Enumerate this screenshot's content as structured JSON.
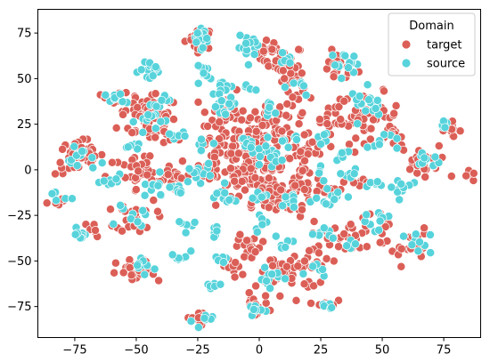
{
  "chart_data": {
    "type": "scatter",
    "title": "",
    "xlabel": "",
    "ylabel": "",
    "xlim": [
      -90,
      90
    ],
    "ylim": [
      -92,
      88
    ],
    "xticks": [
      -75,
      -50,
      -25,
      0,
      25,
      50,
      75
    ],
    "yticks": [
      -75,
      -50,
      -25,
      0,
      25,
      50,
      75
    ],
    "grid": false,
    "legend": {
      "title": "Domain",
      "placement": "top-right",
      "entries": [
        {
          "label": "target",
          "color": "#db5f57"
        },
        {
          "label": "source",
          "color": "#57d3db"
        }
      ]
    },
    "series": [
      {
        "name": "target",
        "color": "#db5f57",
        "clusters": [
          {
            "x": -24,
            "y": 72,
            "spread": 3,
            "n": 22
          },
          {
            "x": 4,
            "y": 65,
            "spread": 3,
            "n": 12
          },
          {
            "x": 10,
            "y": 60,
            "spread": 4,
            "n": 24
          },
          {
            "x": 12,
            "y": 52,
            "spread": 3,
            "n": 14
          },
          {
            "x": 32,
            "y": 56,
            "spread": 4,
            "n": 22
          },
          {
            "x": 17,
            "y": 42,
            "spread": 3,
            "n": 10
          },
          {
            "x": -48,
            "y": 38,
            "spread": 4,
            "n": 16
          },
          {
            "x": -60,
            "y": 39,
            "spread": 2,
            "n": 10
          },
          {
            "x": -45,
            "y": 28,
            "spread": 6,
            "n": 45
          },
          {
            "x": -14,
            "y": 30,
            "spread": 6,
            "n": 30
          },
          {
            "x": 3,
            "y": 31,
            "spread": 5,
            "n": 22
          },
          {
            "x": 32,
            "y": 30,
            "spread": 5,
            "n": 25
          },
          {
            "x": 45,
            "y": 30,
            "spread": 6,
            "n": 38
          },
          {
            "x": 55,
            "y": 18,
            "spread": 3,
            "n": 12
          },
          {
            "x": 78,
            "y": 22,
            "spread": 2,
            "n": 10
          },
          {
            "x": -73,
            "y": 7,
            "spread": 5,
            "n": 45
          },
          {
            "x": -36,
            "y": 18,
            "spread": 3,
            "n": 10
          },
          {
            "x": -10,
            "y": 12,
            "spread": 8,
            "n": 60
          },
          {
            "x": 5,
            "y": 6,
            "spread": 10,
            "n": 120
          },
          {
            "x": 22,
            "y": 10,
            "spread": 3,
            "n": 8
          },
          {
            "x": 65,
            "y": 5,
            "spread": 4,
            "n": 22
          },
          {
            "x": -48,
            "y": -4,
            "spread": 7,
            "n": 40
          },
          {
            "x": -34,
            "y": -3,
            "spread": 3,
            "n": 10
          },
          {
            "x": -20,
            "y": -1,
            "spread": 3,
            "n": 12
          },
          {
            "x": -8,
            "y": -3,
            "spread": 4,
            "n": 20
          },
          {
            "x": 18,
            "y": -8,
            "spread": 4,
            "n": 16
          },
          {
            "x": 40,
            "y": -7,
            "spread": 3,
            "n": 8
          },
          {
            "x": 84,
            "y": -4,
            "spread": 2,
            "n": 8
          },
          {
            "x": -82,
            "y": -17,
            "spread": 2,
            "n": 6
          },
          {
            "x": -50,
            "y": -26,
            "spread": 4,
            "n": 25
          },
          {
            "x": 2,
            "y": -15,
            "spread": 5,
            "n": 28
          },
          {
            "x": 12,
            "y": -18,
            "spread": 4,
            "n": 16
          },
          {
            "x": 26,
            "y": -12,
            "spread": 3,
            "n": 10
          },
          {
            "x": -68,
            "y": -33,
            "spread": 2,
            "n": 8
          },
          {
            "x": 29,
            "y": -36,
            "spread": 4,
            "n": 14
          },
          {
            "x": 38,
            "y": -37,
            "spread": 4,
            "n": 14
          },
          {
            "x": 47,
            "y": -28,
            "spread": 3,
            "n": 10
          },
          {
            "x": 60,
            "y": -42,
            "spread": 5,
            "n": 24
          },
          {
            "x": -4,
            "y": -42,
            "spread": 4,
            "n": 22
          },
          {
            "x": -50,
            "y": -57,
            "spread": 4,
            "n": 24
          },
          {
            "x": -10,
            "y": -54,
            "spread": 3,
            "n": 10
          },
          {
            "x": 12,
            "y": -56,
            "spread": 6,
            "n": 40
          },
          {
            "x": 26,
            "y": -48,
            "spread": 3,
            "n": 10
          },
          {
            "x": -25,
            "y": -82,
            "spread": 2,
            "n": 10
          },
          {
            "x": -2,
            "y": -74,
            "spread": 3,
            "n": 16
          },
          {
            "x": 27,
            "y": -74,
            "spread": 2,
            "n": 8
          }
        ]
      },
      {
        "name": "source",
        "color": "#57d3db",
        "clusters": [
          {
            "x": -24,
            "y": 73,
            "spread": 3,
            "n": 16
          },
          {
            "x": -3,
            "y": 67,
            "spread": 3,
            "n": 14
          },
          {
            "x": 9,
            "y": 61,
            "spread": 2,
            "n": 6
          },
          {
            "x": 35,
            "y": 58,
            "spread": 3,
            "n": 14
          },
          {
            "x": -43,
            "y": 55,
            "spread": 3,
            "n": 18
          },
          {
            "x": -22,
            "y": 53,
            "spread": 2,
            "n": 10
          },
          {
            "x": -13,
            "y": 45,
            "spread": 2,
            "n": 8
          },
          {
            "x": -4,
            "y": 45,
            "spread": 1.5,
            "n": 5
          },
          {
            "x": 18,
            "y": 45,
            "spread": 2,
            "n": 6
          },
          {
            "x": -59,
            "y": 39,
            "spread": 2,
            "n": 10
          },
          {
            "x": -40,
            "y": 39,
            "spread": 2,
            "n": 8
          },
          {
            "x": -15,
            "y": 35,
            "spread": 3,
            "n": 14
          },
          {
            "x": 5,
            "y": 33,
            "spread": 2,
            "n": 6
          },
          {
            "x": 45,
            "y": 37,
            "spread": 4,
            "n": 16
          },
          {
            "x": -44,
            "y": 27,
            "spread": 3,
            "n": 12
          },
          {
            "x": 76,
            "y": 24,
            "spread": 2,
            "n": 6
          },
          {
            "x": -34,
            "y": 18,
            "spread": 2,
            "n": 6
          },
          {
            "x": -24,
            "y": 15,
            "spread": 2,
            "n": 6
          },
          {
            "x": 12,
            "y": 17,
            "spread": 2,
            "n": 6
          },
          {
            "x": 25,
            "y": 17,
            "spread": 2,
            "n": 6
          },
          {
            "x": 50,
            "y": 16,
            "spread": 3,
            "n": 10
          },
          {
            "x": -52,
            "y": 12,
            "spread": 2,
            "n": 6
          },
          {
            "x": -72,
            "y": 6,
            "spread": 3,
            "n": 14
          },
          {
            "x": -5,
            "y": 15,
            "spread": 2,
            "n": 8
          },
          {
            "x": 0,
            "y": 10,
            "spread": 3,
            "n": 12
          },
          {
            "x": 34,
            "y": 8,
            "spread": 2,
            "n": 6
          },
          {
            "x": 68,
            "y": 6,
            "spread": 3,
            "n": 10
          },
          {
            "x": -25,
            "y": 0,
            "spread": 3,
            "n": 12
          },
          {
            "x": 7,
            "y": 2,
            "spread": 2,
            "n": 6
          },
          {
            "x": 24,
            "y": -1,
            "spread": 2,
            "n": 5
          },
          {
            "x": 38,
            "y": -2,
            "spread": 2,
            "n": 6
          },
          {
            "x": 49,
            "y": -8,
            "spread": 2,
            "n": 6
          },
          {
            "x": -60,
            "y": -7,
            "spread": 2,
            "n": 8
          },
          {
            "x": -43,
            "y": -10,
            "spread": 3,
            "n": 10
          },
          {
            "x": -34,
            "y": -12,
            "spread": 3,
            "n": 10
          },
          {
            "x": 58,
            "y": -10,
            "spread": 3,
            "n": 12
          },
          {
            "x": -82,
            "y": -15,
            "spread": 2,
            "n": 5
          },
          {
            "x": -15,
            "y": -15,
            "spread": 3,
            "n": 10
          },
          {
            "x": 0,
            "y": -15,
            "spread": 2,
            "n": 8
          },
          {
            "x": 14,
            "y": -17,
            "spread": 3,
            "n": 12
          },
          {
            "x": 30,
            "y": -15,
            "spread": 3,
            "n": 12
          },
          {
            "x": -52,
            "y": -27,
            "spread": 3,
            "n": 10
          },
          {
            "x": -30,
            "y": -30,
            "spread": 2,
            "n": 6
          },
          {
            "x": 1,
            "y": -30,
            "spread": 2,
            "n": 6
          },
          {
            "x": 46,
            "y": -28,
            "spread": 3,
            "n": 10
          },
          {
            "x": -72,
            "y": -35,
            "spread": 2,
            "n": 8
          },
          {
            "x": -18,
            "y": -34,
            "spread": 2,
            "n": 6
          },
          {
            "x": 27,
            "y": -33,
            "spread": 2,
            "n": 6
          },
          {
            "x": 36,
            "y": -40,
            "spread": 2,
            "n": 6
          },
          {
            "x": 10,
            "y": -40,
            "spread": 2,
            "n": 6
          },
          {
            "x": 64,
            "y": -40,
            "spread": 3,
            "n": 10
          },
          {
            "x": -32,
            "y": -47,
            "spread": 2,
            "n": 8
          },
          {
            "x": -15,
            "y": -48,
            "spread": 2,
            "n": 8
          },
          {
            "x": -47,
            "y": -53,
            "spread": 3,
            "n": 10
          },
          {
            "x": 4,
            "y": -58,
            "spread": 3,
            "n": 12
          },
          {
            "x": 23,
            "y": -54,
            "spread": 2,
            "n": 6
          },
          {
            "x": -20,
            "y": -65,
            "spread": 2,
            "n": 6
          },
          {
            "x": -23,
            "y": -83,
            "spread": 2,
            "n": 8
          },
          {
            "x": -3,
            "y": -77,
            "spread": 2,
            "n": 8
          },
          {
            "x": 28,
            "y": -74,
            "spread": 2,
            "n": 6
          }
        ]
      }
    ]
  }
}
